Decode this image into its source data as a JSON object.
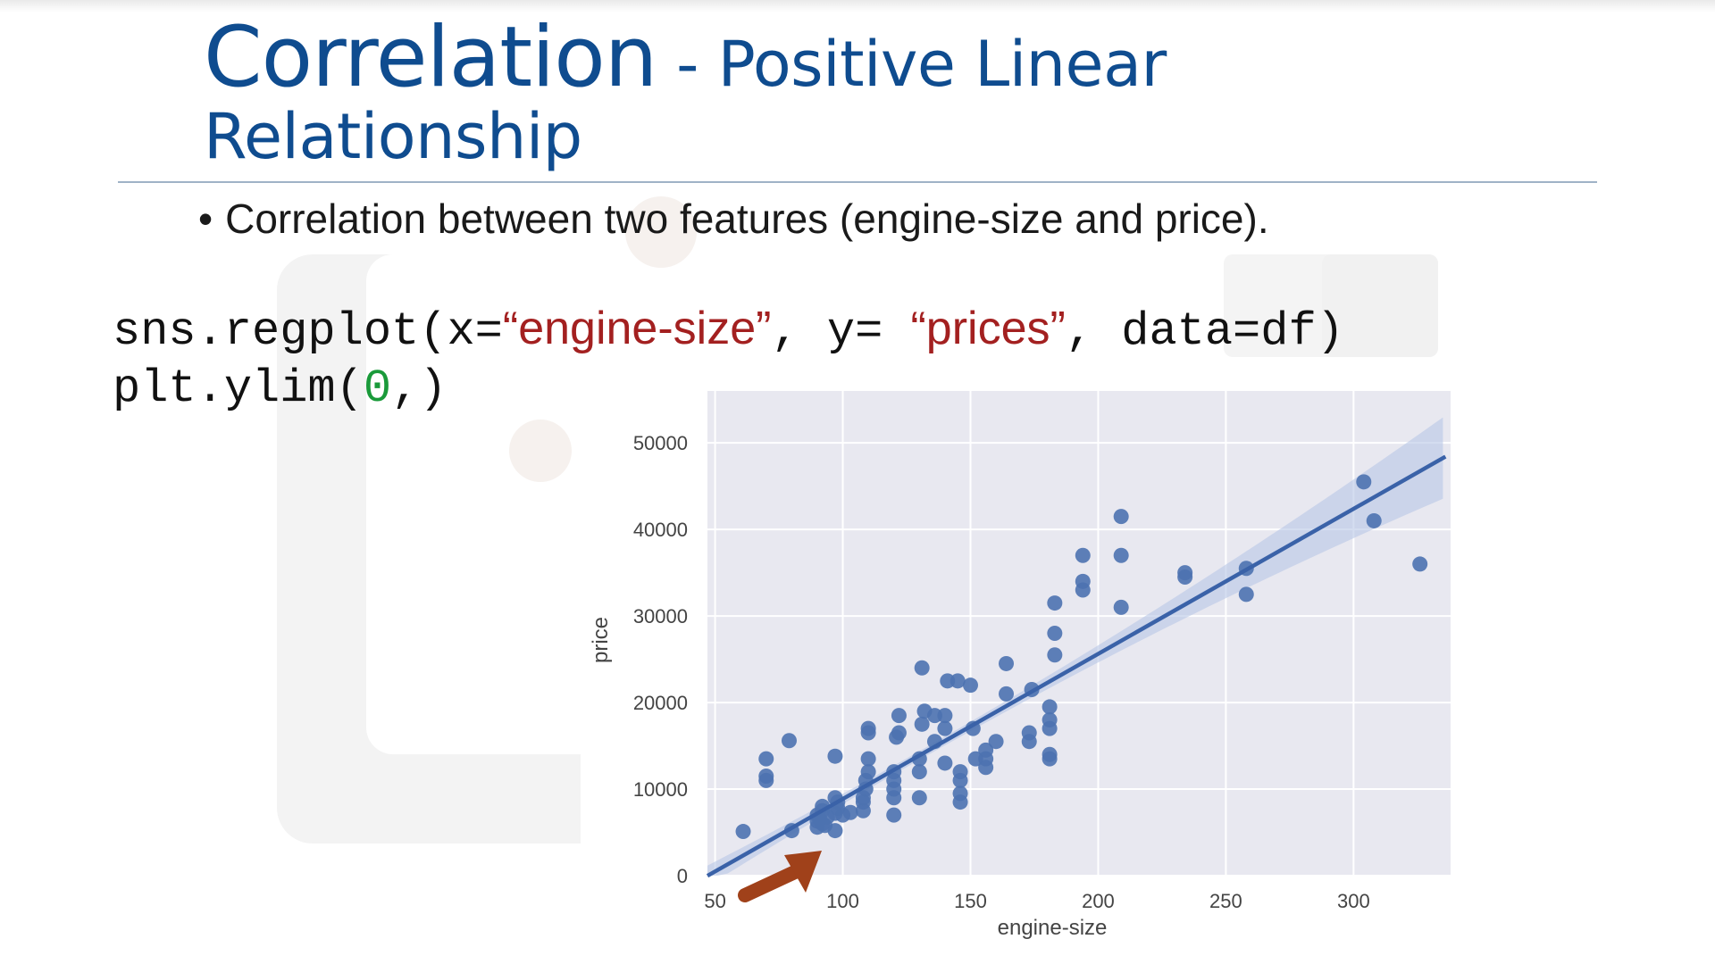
{
  "title": {
    "main": "Correlation",
    "sub_line1": " - Positive Linear",
    "sub_line2": "Relationship"
  },
  "bullet": {
    "symbol": "•",
    "text": "Correlation between two features (engine-size and price)."
  },
  "code": {
    "line1_pre": "sns.regplot(x=",
    "line1_str1": "“engine-size”",
    "line1_mid": ", y= ",
    "line1_str2": "“prices”",
    "line1_post": ", data=df)",
    "line2_pre": "plt.ylim(",
    "line2_num": "0",
    "line2_post": ",)"
  },
  "colors": {
    "title": "#0f4c8f",
    "point": "#4c72b0",
    "regression_line": "#3a62a8",
    "ci_band": "#b8c6e6",
    "plot_bg": "#e8e8f0",
    "grid": "#ffffff",
    "arrow": "#a0411a"
  },
  "icons": {
    "annotation": "arrow-icon"
  },
  "chart_data": {
    "type": "scatter",
    "title": "",
    "xlabel": "engine-size",
    "ylabel": "price",
    "xlim": [
      47,
      338
    ],
    "ylim": [
      0,
      56000
    ],
    "x_ticks": [
      50,
      100,
      150,
      200,
      250,
      300
    ],
    "y_ticks": [
      0,
      10000,
      20000,
      30000,
      40000,
      50000
    ],
    "x_tick_labels": [
      "50",
      "100",
      "150",
      "200",
      "250",
      "300"
    ],
    "y_tick_labels": [
      "0",
      "10000",
      "20000",
      "30000",
      "40000",
      "50000"
    ],
    "grid": true,
    "regression": {
      "slope": 167.6,
      "intercept": -7900,
      "ci": true
    },
    "points": [
      [
        61,
        5100
      ],
      [
        70,
        13500
      ],
      [
        70,
        11500
      ],
      [
        70,
        11000
      ],
      [
        79,
        15600
      ],
      [
        80,
        5200
      ],
      [
        90,
        5600
      ],
      [
        90,
        6300
      ],
      [
        90,
        7000
      ],
      [
        91,
        6500
      ],
      [
        92,
        6000
      ],
      [
        92,
        7500
      ],
      [
        92,
        8000
      ],
      [
        93,
        5800
      ],
      [
        94,
        6800
      ],
      [
        97,
        7200
      ],
      [
        97,
        9000
      ],
      [
        97,
        5200
      ],
      [
        97,
        13800
      ],
      [
        98,
        8500
      ],
      [
        98,
        7800
      ],
      [
        100,
        7000
      ],
      [
        103,
        7300
      ],
      [
        108,
        7500
      ],
      [
        108,
        8500
      ],
      [
        108,
        9000
      ],
      [
        109,
        10000
      ],
      [
        109,
        11000
      ],
      [
        110,
        12000
      ],
      [
        110,
        13500
      ],
      [
        110,
        16500
      ],
      [
        110,
        17000
      ],
      [
        120,
        7000
      ],
      [
        120,
        9000
      ],
      [
        120,
        10000
      ],
      [
        120,
        11000
      ],
      [
        120,
        12000
      ],
      [
        121,
        16000
      ],
      [
        122,
        16500
      ],
      [
        122,
        18500
      ],
      [
        130,
        9000
      ],
      [
        130,
        12000
      ],
      [
        130,
        13500
      ],
      [
        131,
        17500
      ],
      [
        131,
        24000
      ],
      [
        132,
        19000
      ],
      [
        136,
        18500
      ],
      [
        136,
        15500
      ],
      [
        140,
        13000
      ],
      [
        140,
        17000
      ],
      [
        140,
        18500
      ],
      [
        141,
        22500
      ],
      [
        145,
        22500
      ],
      [
        146,
        12000
      ],
      [
        146,
        11000
      ],
      [
        146,
        9500
      ],
      [
        146,
        8500
      ],
      [
        150,
        22000
      ],
      [
        151,
        17000
      ],
      [
        152,
        13500
      ],
      [
        156,
        14500
      ],
      [
        156,
        13500
      ],
      [
        156,
        12500
      ],
      [
        160,
        15500
      ],
      [
        164,
        24500
      ],
      [
        164,
        21000
      ],
      [
        173,
        15500
      ],
      [
        173,
        16500
      ],
      [
        174,
        21500
      ],
      [
        181,
        13500
      ],
      [
        181,
        14000
      ],
      [
        181,
        17000
      ],
      [
        181,
        18000
      ],
      [
        181,
        19500
      ],
      [
        183,
        25500
      ],
      [
        183,
        28000
      ],
      [
        183,
        31500
      ],
      [
        194,
        33000
      ],
      [
        194,
        34000
      ],
      [
        194,
        37000
      ],
      [
        209,
        31000
      ],
      [
        209,
        37000
      ],
      [
        209,
        41500
      ],
      [
        234,
        34500
      ],
      [
        234,
        35000
      ],
      [
        258,
        32500
      ],
      [
        258,
        35500
      ],
      [
        304,
        45500
      ],
      [
        308,
        41000
      ],
      [
        326,
        36000
      ]
    ]
  }
}
